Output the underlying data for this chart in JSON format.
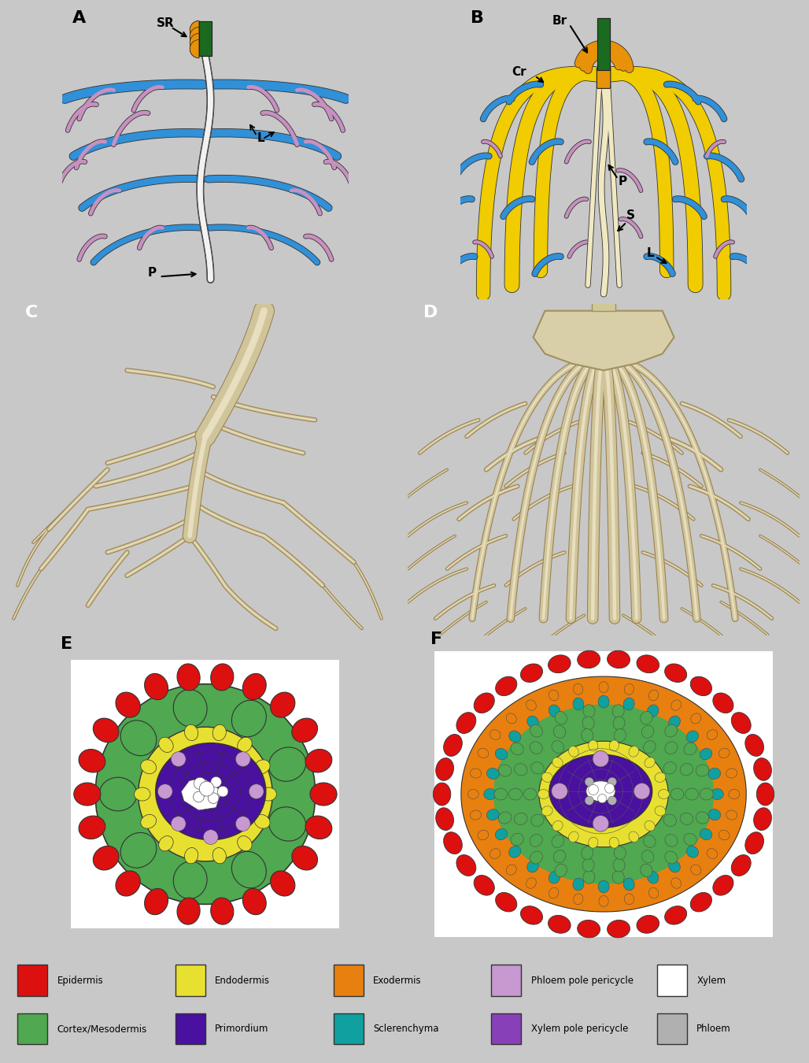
{
  "background_outer": "#c8c8c8",
  "background_panel_ab": "#ffffff",
  "background_ef": "#e0e0e0",
  "background_cd": "#808080",
  "border_color": "#222222",
  "colors": {
    "green_stem": "#1a6b20",
    "orange_sr": "#e8920a",
    "blue_root": "#3090d8",
    "pink_root": "#c890c0",
    "white_root": "#f0f0f0",
    "yellow_cr": "#f0cc00",
    "cream_root": "#f0e8c0",
    "epidermis": "#dd1010",
    "cortex": "#50a850",
    "endodermis": "#e8e030",
    "exodermis": "#e88010",
    "primordium": "#4a10a0",
    "sclerenchyma": "#10a0a0",
    "phloem_pole": "#c898d0",
    "xylem_pole": "#8840b8",
    "xylem": "#ffffff",
    "phloem": "#b0b0b0",
    "root_3d": "#d0c49a",
    "root_3d_edge": "#988050"
  },
  "legend_items": [
    {
      "label": "Epidermis",
      "color": "#dd1010"
    },
    {
      "label": "Endodermis",
      "color": "#e8e030"
    },
    {
      "label": "Exodermis",
      "color": "#e88010"
    },
    {
      "label": "Phloem pole pericycle",
      "color": "#c898d0"
    },
    {
      "label": "Xylem",
      "color": "#ffffff"
    },
    {
      "label": "Cortex/Mesodermis",
      "color": "#50a850"
    },
    {
      "label": "Primordium",
      "color": "#4a10a0"
    },
    {
      "label": "Sclerenchyma",
      "color": "#10a0a0"
    },
    {
      "label": "Xylem pole pericycle",
      "color": "#8840b8"
    },
    {
      "label": "Phloem",
      "color": "#b0b0b0"
    }
  ]
}
